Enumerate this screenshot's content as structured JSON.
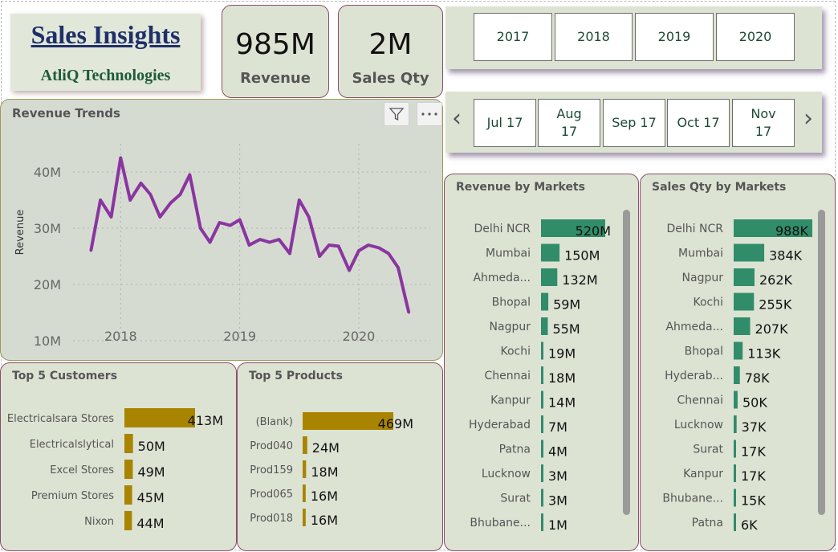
{
  "header": {
    "title": "Sales Insights",
    "subtitle": "AtliQ Technologies"
  },
  "kpis": {
    "revenue": {
      "value": "985M",
      "label": "Revenue"
    },
    "sales_qty": {
      "value": "2M",
      "label": "Sales Qty"
    }
  },
  "year_slicer": {
    "years": [
      "2017",
      "2018",
      "2019",
      "2020"
    ]
  },
  "month_slicer": {
    "prev_glyph": "‹",
    "next_glyph": "›",
    "months": [
      "Jul 17",
      "Aug 17",
      "Sep 17",
      "Oct 17",
      "Nov 17"
    ]
  },
  "chart_data": [
    {
      "id": "revenue_trends",
      "type": "line",
      "title": "Revenue Trends",
      "ylabel": "Revenue",
      "ylim": [
        10,
        45
      ],
      "y_ticks": [
        10,
        20,
        30,
        40
      ],
      "y_tick_labels": [
        "10M",
        "20M",
        "30M",
        "40M"
      ],
      "x_ticks": [
        2018,
        2019,
        2020
      ],
      "x_tick_labels": [
        "2018",
        "2019",
        "2020"
      ],
      "xlim": [
        2017.6,
        2020.6
      ],
      "grid": true,
      "color": "#8a35a0",
      "x": [
        2017.75,
        2017.83,
        2017.92,
        2018.0,
        2018.08,
        2018.17,
        2018.25,
        2018.33,
        2018.42,
        2018.5,
        2018.58,
        2018.67,
        2018.75,
        2018.83,
        2018.92,
        2019.0,
        2019.08,
        2019.17,
        2019.25,
        2019.33,
        2019.42,
        2019.5,
        2019.58,
        2019.67,
        2019.75,
        2019.83,
        2019.92,
        2020.0,
        2020.08,
        2020.17,
        2020.25,
        2020.33,
        2020.42
      ],
      "values": [
        26,
        35,
        32,
        42.5,
        35,
        38,
        36,
        32,
        34.5,
        36,
        39.5,
        30,
        27.5,
        31,
        30.5,
        31.5,
        27,
        28,
        27.5,
        28,
        25.5,
        35,
        32,
        25,
        27,
        26.8,
        22.5,
        26,
        27,
        26.5,
        25.5,
        23,
        15
      ]
    },
    {
      "id": "revenue_by_markets",
      "type": "bar",
      "orientation": "horizontal",
      "title": "Revenue by Markets",
      "color": "#318c6a",
      "categories": [
        "Delhi NCR",
        "Mumbai",
        "Ahmeda...",
        "Bhopal",
        "Nagpur",
        "Kochi",
        "Chennai",
        "Kanpur",
        "Hyderabad",
        "Patna",
        "Lucknow",
        "Surat",
        "Bhubane..."
      ],
      "values": [
        520,
        150,
        132,
        59,
        55,
        19,
        18,
        14,
        7,
        4,
        3,
        3,
        1
      ],
      "data_labels": [
        "520M",
        "150M",
        "132M",
        "59M",
        "55M",
        "19M",
        "18M",
        "14M",
        "7M",
        "4M",
        "3M",
        "3M",
        "1M"
      ]
    },
    {
      "id": "sales_qty_by_markets",
      "type": "bar",
      "orientation": "horizontal",
      "title": "Sales Qty by Markets",
      "color": "#318c6a",
      "categories": [
        "Delhi NCR",
        "Mumbai",
        "Nagpur",
        "Kochi",
        "Ahmeda...",
        "Bhopal",
        "Hyderab...",
        "Chennai",
        "Lucknow",
        "Surat",
        "Kanpur",
        "Bhubane...",
        "Patna"
      ],
      "values": [
        988,
        384,
        262,
        255,
        207,
        113,
        78,
        50,
        37,
        17,
        17,
        15,
        6
      ],
      "data_labels": [
        "988K",
        "384K",
        "262K",
        "255K",
        "207K",
        "113K",
        "78K",
        "50K",
        "37K",
        "17K",
        "17K",
        "15K",
        "6K"
      ]
    },
    {
      "id": "top5_customers",
      "type": "bar",
      "orientation": "horizontal",
      "title": "Top 5 Customers",
      "color": "#a88400",
      "categories": [
        "Electricalsara Stores",
        "Electricalslytical",
        "Excel Stores",
        "Premium Stores",
        "Nixon"
      ],
      "values": [
        413,
        50,
        49,
        45,
        44
      ],
      "data_labels": [
        "413M",
        "50M",
        "49M",
        "45M",
        "44M"
      ]
    },
    {
      "id": "top5_products",
      "type": "bar",
      "orientation": "horizontal",
      "title": "Top 5 Products",
      "color": "#a88400",
      "categories": [
        "(Blank)",
        "Prod040",
        "Prod159",
        "Prod065",
        "Prod018"
      ],
      "values": [
        469,
        24,
        18,
        16,
        16
      ],
      "data_labels": [
        "469M",
        "24M",
        "18M",
        "16M",
        "16M"
      ]
    }
  ]
}
